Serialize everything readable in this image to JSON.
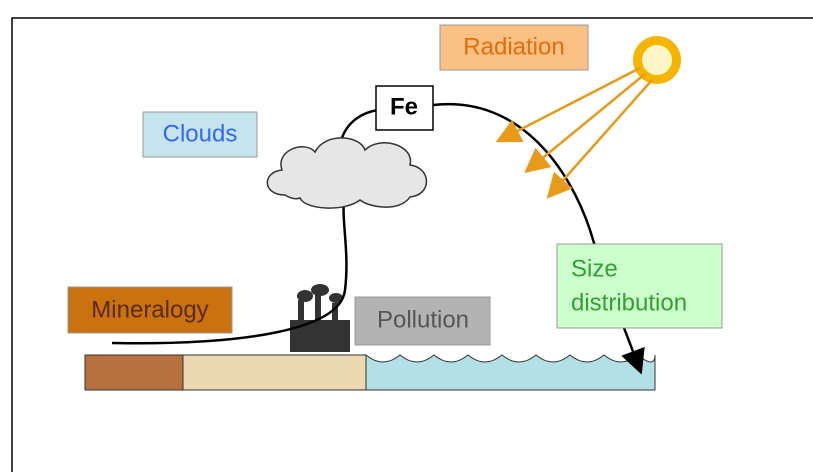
{
  "nodes": [
    {
      "label": "Radiation"
    },
    {
      "label": "Fe"
    },
    {
      "label": "Clouds"
    },
    {
      "lines": [
        "Size",
        "distribution"
      ]
    },
    {
      "label": "Mineralogy"
    },
    {
      "label": "Pollution"
    }
  ]
}
